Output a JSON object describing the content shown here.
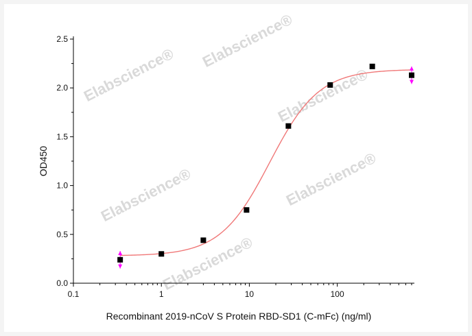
{
  "chart_data": {
    "type": "scatter",
    "xlabel": "Recombinant 2019-nCoV S Protein RBD-SD1 (C-mFc) (ng/ml)",
    "ylabel": "OD450",
    "x_scale": "log",
    "xlim": [
      0.1,
      700
    ],
    "ylim": [
      0.0,
      2.5
    ],
    "x_ticks": [
      0.1,
      1,
      10,
      100
    ],
    "x_tick_labels": [
      "0.1",
      "1",
      "10",
      "100"
    ],
    "y_ticks": [
      0.0,
      0.5,
      1.0,
      1.5,
      2.0,
      2.5
    ],
    "y_tick_labels": [
      "0.0",
      "0.5",
      "1.0",
      "1.5",
      "2.0",
      "2.5"
    ],
    "grid": false,
    "series": [
      {
        "marker": "square",
        "color": "#000000",
        "x": [
          0.34,
          1.0,
          3.0,
          9.3,
          27.8,
          83,
          250,
          700
        ],
        "y": [
          0.24,
          0.3,
          0.44,
          0.75,
          1.61,
          2.03,
          2.22,
          2.13
        ]
      }
    ],
    "fit_curve": {
      "model": "4PL",
      "color": "#f07878",
      "bottom": 0.28,
      "top": 2.19,
      "ec50": 17,
      "hill": 1.55,
      "x_range": [
        0.34,
        700
      ]
    },
    "error_bar_points": [
      {
        "x": 0.34,
        "y": 0.24,
        "err": 0.09
      },
      {
        "x": 700,
        "y": 2.13,
        "err": 0.09
      }
    ],
    "error_bar_color": "#ff00ff",
    "watermark": {
      "text": "Elabscience",
      "mark": "®",
      "color": "#d9d9d9"
    }
  }
}
